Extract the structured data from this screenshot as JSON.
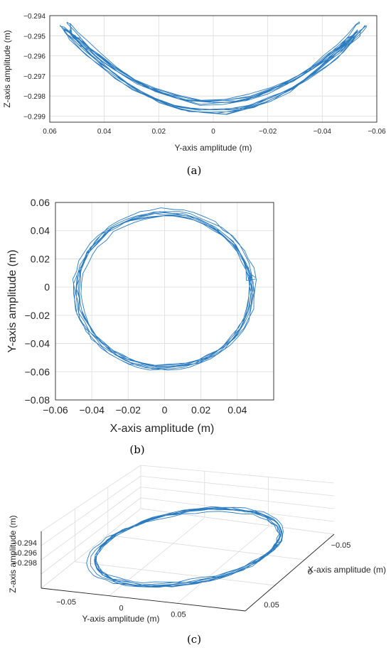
{
  "chart_data": [
    {
      "type": "line",
      "panel": "a",
      "caption": "(a)",
      "xlabel": "Y-axis amplitude (m)",
      "ylabel": "Z-axis amplitude (m)",
      "xlim": [
        0.06,
        -0.06
      ],
      "ylim": [
        -0.2993,
        -0.294
      ],
      "xticks": [
        "0.06",
        "0.04",
        "0.02",
        "0",
        "−0.02",
        "−0.04",
        "−0.06"
      ],
      "yticks": [
        "−0.294",
        "−0.295",
        "−0.296",
        "−0.297",
        "−0.298",
        "−0.299"
      ],
      "grid": true,
      "series": [
        {
          "loops": 8,
          "amplitude_y": 0.057,
          "z_center": -0.2985,
          "z_top": -0.2946,
          "color": "#2b7bbf"
        }
      ]
    },
    {
      "type": "line",
      "panel": "b",
      "caption": "(b)",
      "xlabel": "X-axis amplitude (m)",
      "ylabel": "Y-axis amplitude (m)",
      "xlim": [
        -0.06,
        0.06
      ],
      "ylim": [
        -0.08,
        0.06
      ],
      "xticks": [
        "−0.06",
        "−0.04",
        "−0.02",
        "0",
        "0.02",
        "0.04"
      ],
      "yticks": [
        "0.06",
        "0.04",
        "0.02",
        "0",
        "−0.02",
        "−0.04",
        "−0.06",
        "−0.08"
      ],
      "grid": true,
      "series": [
        {
          "loops": 8,
          "center_x": 0,
          "center_y": -0.002,
          "radius_x": 0.049,
          "radius_y": 0.056,
          "color": "#2b7bbf"
        }
      ]
    },
    {
      "type": "line",
      "panel": "c",
      "caption": "(c)",
      "xlabel": "X-axis amplitude (m)",
      "ylabel": "Y-axis amplitude (m)",
      "zlabel": "Z-axis amplitude (m)",
      "xticks": [
        "−0.05",
        "0",
        "0.05"
      ],
      "yticks": [
        "−0.05",
        "0",
        "0.05"
      ],
      "zticks": [
        "−0.294",
        "−0.296",
        "−0.298"
      ],
      "grid": true,
      "series": [
        {
          "loops": 8,
          "color": "#2b7bbf"
        }
      ]
    }
  ]
}
